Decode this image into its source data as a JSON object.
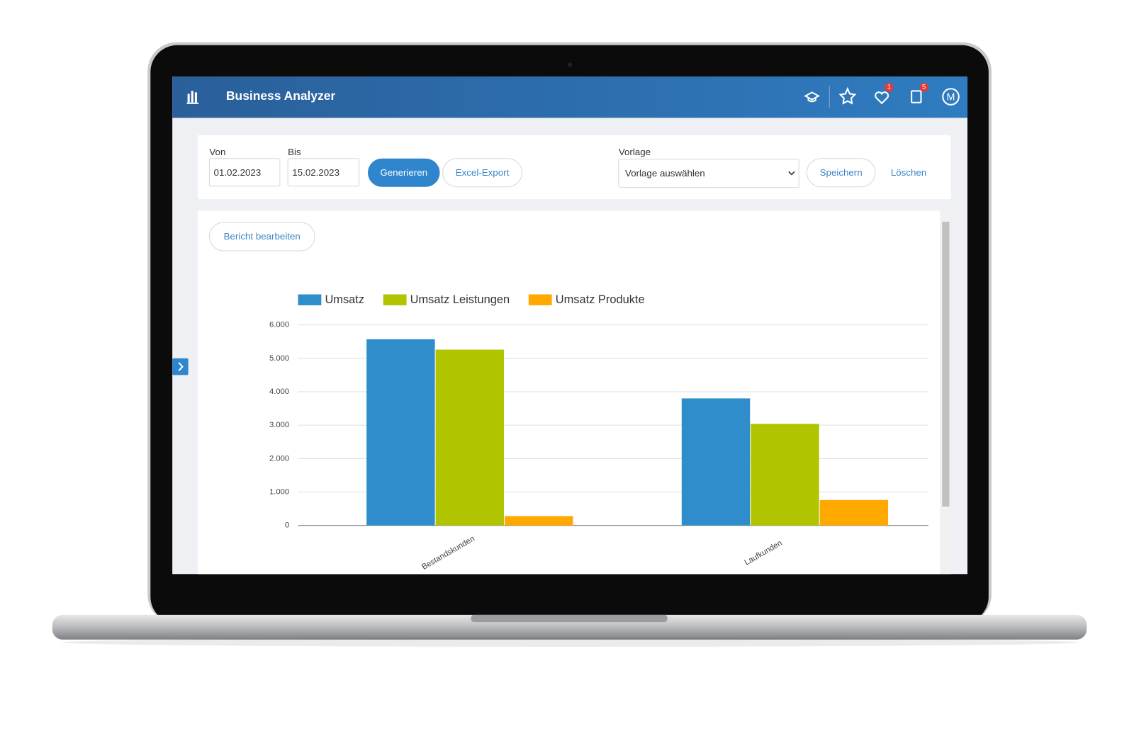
{
  "header": {
    "title": "Business Analyzer",
    "badges": [
      "1",
      "5"
    ],
    "avatar": "M"
  },
  "filters": {
    "from_label": "Von",
    "from_value": "01.02.2023",
    "to_label": "Bis",
    "to_value": "15.02.2023",
    "generate": "Generieren",
    "export": "Excel-Export",
    "template_label": "Vorlage",
    "template_select": "Vorlage auswählen",
    "save": "Speichern",
    "delete": "Löschen"
  },
  "report": {
    "edit": "Bericht bearbeiten"
  },
  "chart_data": {
    "type": "bar",
    "categories": [
      "Bestandskunden",
      "Laufkunden"
    ],
    "series": [
      {
        "name": "Umsatz",
        "color": "#2f8dcc",
        "values": [
          5570,
          3800
        ]
      },
      {
        "name": "Umsatz Leistungen",
        "color": "#b0c400",
        "values": [
          5260,
          3040
        ]
      },
      {
        "name": "Umsatz Produkte",
        "color": "#ffa900",
        "values": [
          280,
          760
        ]
      }
    ],
    "ylim": [
      0,
      6000
    ],
    "yticks": [
      0,
      {
        "value": 1000,
        "label": "1.000"
      },
      {
        "value": 2000,
        "label": "2.000"
      },
      {
        "value": 3000,
        "label": "3.000"
      },
      {
        "value": 4000,
        "label": "4.000"
      },
      {
        "value": 5000,
        "label": "5.000"
      },
      {
        "value": 6000,
        "label": "6.000"
      }
    ],
    "grid": true,
    "legend": "top-left"
  }
}
